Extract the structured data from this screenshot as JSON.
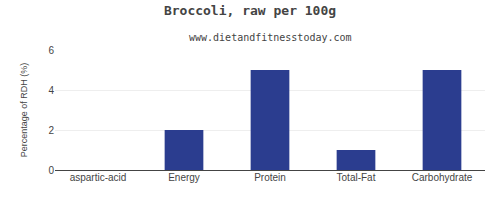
{
  "chart_data": {
    "type": "bar",
    "title": "Broccoli, raw per 100g",
    "subtitle": "www.dietandfitnesstoday.com",
    "categories": [
      "aspartic-acid",
      "Energy",
      "Protein",
      "Total-Fat",
      "Carbohydrate"
    ],
    "values": [
      0,
      2.0,
      5.0,
      1.0,
      5.0
    ],
    "color": "#2b3d8f",
    "ylabel": "Percentage of RDH (%)",
    "ylim": [
      0,
      6
    ],
    "yticks": [
      0,
      2,
      4,
      6
    ],
    "grid": true
  }
}
